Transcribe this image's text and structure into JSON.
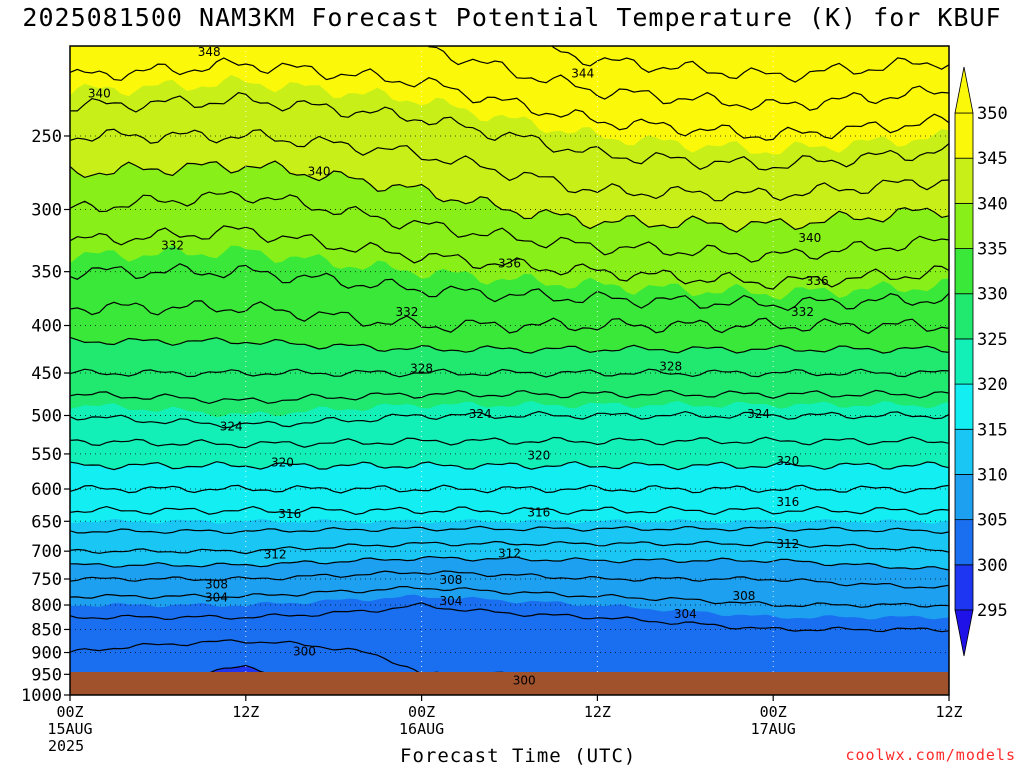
{
  "title": "2025081500 NAM3KM Forecast Potential Temperature (K) for KBUF",
  "xlabel": "Forecast Time (UTC)",
  "credit": "coolwx.com/models",
  "colors": {
    "levels": [
      "#1f12e8",
      "#1e36f2",
      "#1a6ef0",
      "#1ea0f0",
      "#19c6f4",
      "#12eef2",
      "#12f0b8",
      "#21e86e",
      "#3ae83a",
      "#88f018",
      "#c8f018",
      "#fbf80a"
    ],
    "terrain": "#a0522d",
    "contour": "#000000",
    "credit": "#ff2a2a"
  },
  "chart_data": {
    "type": "heatmap",
    "title": "2025081500 NAM3KM Forecast Potential Temperature (K) for KBUF",
    "xlabel": "Forecast Time (UTC)",
    "ylabel": "",
    "units": "K",
    "y_scale": "log",
    "ylim": [
      1000,
      200
    ],
    "y_ticks": [
      250,
      300,
      350,
      400,
      450,
      500,
      550,
      600,
      650,
      700,
      750,
      800,
      850,
      900,
      950,
      1000
    ],
    "x_ticks": [
      {
        "hour": 0,
        "lines": [
          "00Z",
          "15AUG",
          "2025"
        ]
      },
      {
        "hour": 12,
        "lines": [
          "12Z"
        ]
      },
      {
        "hour": 24,
        "lines": [
          "00Z",
          "16AUG"
        ]
      },
      {
        "hour": 36,
        "lines": [
          "12Z"
        ]
      },
      {
        "hour": 48,
        "lines": [
          "00Z",
          "17AUG"
        ]
      },
      {
        "hour": 60,
        "lines": [
          "12Z"
        ]
      }
    ],
    "xlim_hours": [
      0,
      60
    ],
    "colorbar": {
      "levels": [
        295,
        300,
        305,
        310,
        315,
        320,
        325,
        330,
        335,
        340,
        345,
        350
      ]
    },
    "contour_levels": [
      300,
      304,
      308,
      312,
      316,
      320,
      324,
      328,
      332,
      336,
      340,
      344,
      348
    ],
    "theta_profiles": [
      {
        "hour": 0,
        "pressure": [
          1000,
          950,
          900,
          850,
          800,
          750,
          700,
          650,
          600,
          550,
          500,
          450,
          400,
          350,
          300,
          250,
          200
        ],
        "theta": [
          300.5,
          301,
          302,
          303,
          305,
          308,
          312,
          315,
          318,
          321,
          324,
          328,
          331,
          334,
          338,
          342,
          348
        ]
      },
      {
        "hour": 12,
        "pressure": [
          1000,
          950,
          900,
          850,
          800,
          750,
          700,
          650,
          600,
          550,
          500,
          450,
          400,
          350,
          300,
          250,
          200
        ],
        "theta": [
          299,
          299.5,
          301,
          303,
          305,
          308,
          312,
          315,
          318,
          321,
          325,
          328,
          331,
          334,
          337,
          342,
          347
        ]
      },
      {
        "hour": 24,
        "pressure": [
          1000,
          950,
          900,
          850,
          800,
          750,
          700,
          650,
          600,
          550,
          500,
          450,
          400,
          350,
          300,
          250,
          200
        ],
        "theta": [
          301,
          302,
          302.5,
          303,
          304,
          307,
          311,
          315,
          318,
          321,
          324,
          328,
          332,
          335,
          339,
          343,
          348
        ]
      },
      {
        "hour": 36,
        "pressure": [
          1000,
          950,
          900,
          850,
          800,
          750,
          700,
          650,
          600,
          550,
          500,
          450,
          400,
          350,
          300,
          250,
          200
        ],
        "theta": [
          301,
          302,
          302.5,
          303,
          305,
          308,
          311,
          315,
          318,
          321,
          324,
          328,
          332,
          336,
          341,
          345,
          351
        ]
      },
      {
        "hour": 48,
        "pressure": [
          1000,
          950,
          900,
          850,
          800,
          750,
          700,
          650,
          600,
          550,
          500,
          450,
          400,
          350,
          300,
          250,
          200
        ],
        "theta": [
          302,
          303,
          303.5,
          304,
          306,
          308,
          311,
          315,
          318,
          321,
          324,
          328,
          332,
          337,
          341,
          346,
          352
        ]
      },
      {
        "hour": 60,
        "pressure": [
          1000,
          950,
          900,
          850,
          800,
          750,
          700,
          650,
          600,
          550,
          500,
          450,
          400,
          350,
          300,
          250,
          200
        ],
        "theta": [
          302,
          303,
          303.5,
          304,
          306,
          309,
          312,
          315,
          318,
          321,
          324,
          328,
          332,
          336,
          340,
          345,
          351
        ]
      }
    ],
    "annotations": [
      {
        "text": "348",
        "hour": 9.5,
        "pressure": 203
      },
      {
        "text": "344",
        "hour": 35,
        "pressure": 214
      },
      {
        "text": "340",
        "hour": 2,
        "pressure": 225
      },
      {
        "text": "340",
        "hour": 17,
        "pressure": 273
      },
      {
        "text": "340",
        "hour": 50.5,
        "pressure": 322
      },
      {
        "text": "336",
        "hour": 30,
        "pressure": 343
      },
      {
        "text": "336",
        "hour": 51,
        "pressure": 358
      },
      {
        "text": "332",
        "hour": 7,
        "pressure": 328
      },
      {
        "text": "332",
        "hour": 23,
        "pressure": 387
      },
      {
        "text": "332",
        "hour": 50,
        "pressure": 387
      },
      {
        "text": "328",
        "hour": 24,
        "pressure": 445
      },
      {
        "text": "328",
        "hour": 41,
        "pressure": 443
      },
      {
        "text": "324",
        "hour": 11,
        "pressure": 514
      },
      {
        "text": "324",
        "hour": 28,
        "pressure": 498
      },
      {
        "text": "324",
        "hour": 47,
        "pressure": 498
      },
      {
        "text": "320",
        "hour": 14.5,
        "pressure": 562
      },
      {
        "text": "320",
        "hour": 32,
        "pressure": 552
      },
      {
        "text": "320",
        "hour": 49,
        "pressure": 560
      },
      {
        "text": "316",
        "hour": 15,
        "pressure": 638
      },
      {
        "text": "316",
        "hour": 32,
        "pressure": 636
      },
      {
        "text": "316",
        "hour": 49,
        "pressure": 620
      },
      {
        "text": "312",
        "hour": 14,
        "pressure": 706
      },
      {
        "text": "312",
        "hour": 30,
        "pressure": 704
      },
      {
        "text": "312",
        "hour": 49,
        "pressure": 688
      },
      {
        "text": "308",
        "hour": 10,
        "pressure": 760
      },
      {
        "text": "308",
        "hour": 26,
        "pressure": 752
      },
      {
        "text": "308",
        "hour": 46,
        "pressure": 782
      },
      {
        "text": "304",
        "hour": 10,
        "pressure": 785
      },
      {
        "text": "304",
        "hour": 26,
        "pressure": 792
      },
      {
        "text": "304",
        "hour": 42,
        "pressure": 818
      },
      {
        "text": "300",
        "hour": 16,
        "pressure": 898
      },
      {
        "text": "300",
        "hour": 31,
        "pressure": 965
      }
    ]
  }
}
